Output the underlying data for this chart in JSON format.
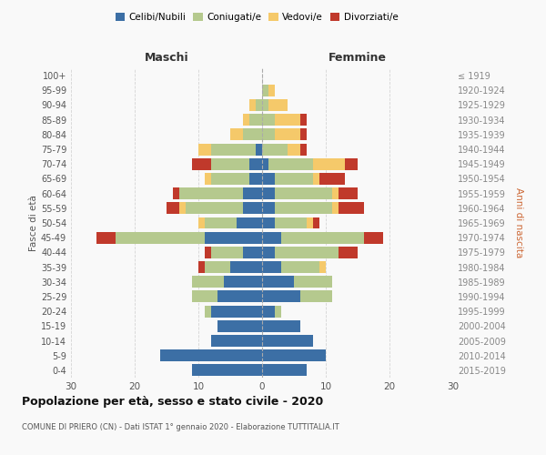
{
  "age_groups": [
    "0-4",
    "5-9",
    "10-14",
    "15-19",
    "20-24",
    "25-29",
    "30-34",
    "35-39",
    "40-44",
    "45-49",
    "50-54",
    "55-59",
    "60-64",
    "65-69",
    "70-74",
    "75-79",
    "80-84",
    "85-89",
    "90-94",
    "95-99",
    "100+"
  ],
  "birth_years": [
    "2015-2019",
    "2010-2014",
    "2005-2009",
    "2000-2004",
    "1995-1999",
    "1990-1994",
    "1985-1989",
    "1980-1984",
    "1975-1979",
    "1970-1974",
    "1965-1969",
    "1960-1964",
    "1955-1959",
    "1950-1954",
    "1945-1949",
    "1940-1944",
    "1935-1939",
    "1930-1934",
    "1925-1929",
    "1920-1924",
    "≤ 1919"
  ],
  "maschi": {
    "celibi": [
      11,
      16,
      8,
      7,
      8,
      7,
      6,
      5,
      3,
      9,
      4,
      3,
      3,
      2,
      2,
      1,
      0,
      0,
      0,
      0,
      0
    ],
    "coniugati": [
      0,
      0,
      0,
      0,
      1,
      4,
      5,
      4,
      5,
      14,
      5,
      9,
      10,
      6,
      6,
      7,
      3,
      2,
      1,
      0,
      0
    ],
    "vedovi": [
      0,
      0,
      0,
      0,
      0,
      0,
      0,
      0,
      0,
      0,
      1,
      1,
      0,
      1,
      0,
      2,
      2,
      1,
      1,
      0,
      0
    ],
    "divorziati": [
      0,
      0,
      0,
      0,
      0,
      0,
      0,
      1,
      1,
      3,
      0,
      2,
      1,
      0,
      3,
      0,
      0,
      0,
      0,
      0,
      0
    ]
  },
  "femmine": {
    "nubili": [
      7,
      10,
      8,
      6,
      2,
      6,
      5,
      3,
      2,
      3,
      2,
      2,
      2,
      2,
      1,
      0,
      0,
      0,
      0,
      0,
      0
    ],
    "coniugate": [
      0,
      0,
      0,
      0,
      1,
      5,
      6,
      6,
      10,
      13,
      5,
      9,
      9,
      6,
      7,
      4,
      2,
      2,
      1,
      1,
      0
    ],
    "vedove": [
      0,
      0,
      0,
      0,
      0,
      0,
      0,
      1,
      0,
      0,
      1,
      1,
      1,
      1,
      5,
      2,
      4,
      4,
      3,
      1,
      0
    ],
    "divorziate": [
      0,
      0,
      0,
      0,
      0,
      0,
      0,
      0,
      3,
      3,
      1,
      4,
      3,
      4,
      2,
      1,
      1,
      1,
      0,
      0,
      0
    ]
  },
  "colors": {
    "celibi": "#3c6fa5",
    "coniugati": "#b5c98e",
    "vedovi": "#f5c96a",
    "divorziati": "#c0392b"
  },
  "xlim": 30,
  "title": "Popolazione per età, sesso e stato civile - 2020",
  "subtitle": "COMUNE DI PRIERO (CN) - Dati ISTAT 1° gennaio 2020 - Elaborazione TUTTITALIA.IT",
  "xlabel_left": "Maschi",
  "xlabel_right": "Femmine",
  "ylabel_left": "Fasce di età",
  "ylabel_right": "Anni di nascita",
  "legend_labels": [
    "Celibi/Nubili",
    "Coniugati/e",
    "Vedovi/e",
    "Divorziati/e"
  ],
  "bg_color": "#f9f9f9",
  "grid_color": "#cccccc"
}
